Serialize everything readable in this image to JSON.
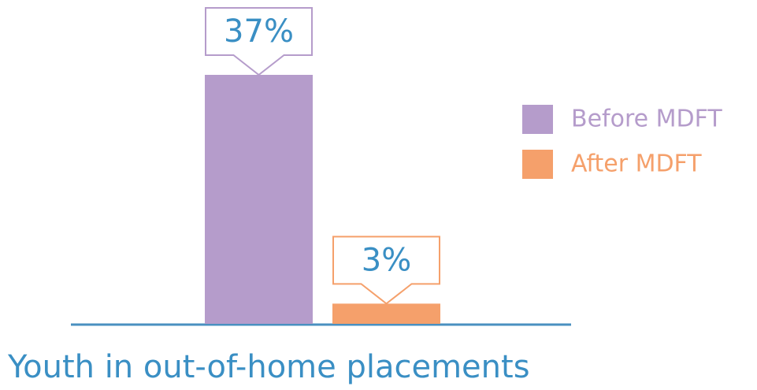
{
  "chart_data": {
    "type": "bar",
    "categories": [
      "Youth in out-of-home placements"
    ],
    "series": [
      {
        "name": "Before MDFT",
        "color": "#b59ccb",
        "values": [
          37
        ],
        "value_labels": [
          "37%"
        ]
      },
      {
        "name": "After MDFT",
        "color": "#f5a06b",
        "values": [
          3
        ],
        "value_labels": [
          "3%"
        ]
      }
    ],
    "legend": "right"
  }
}
